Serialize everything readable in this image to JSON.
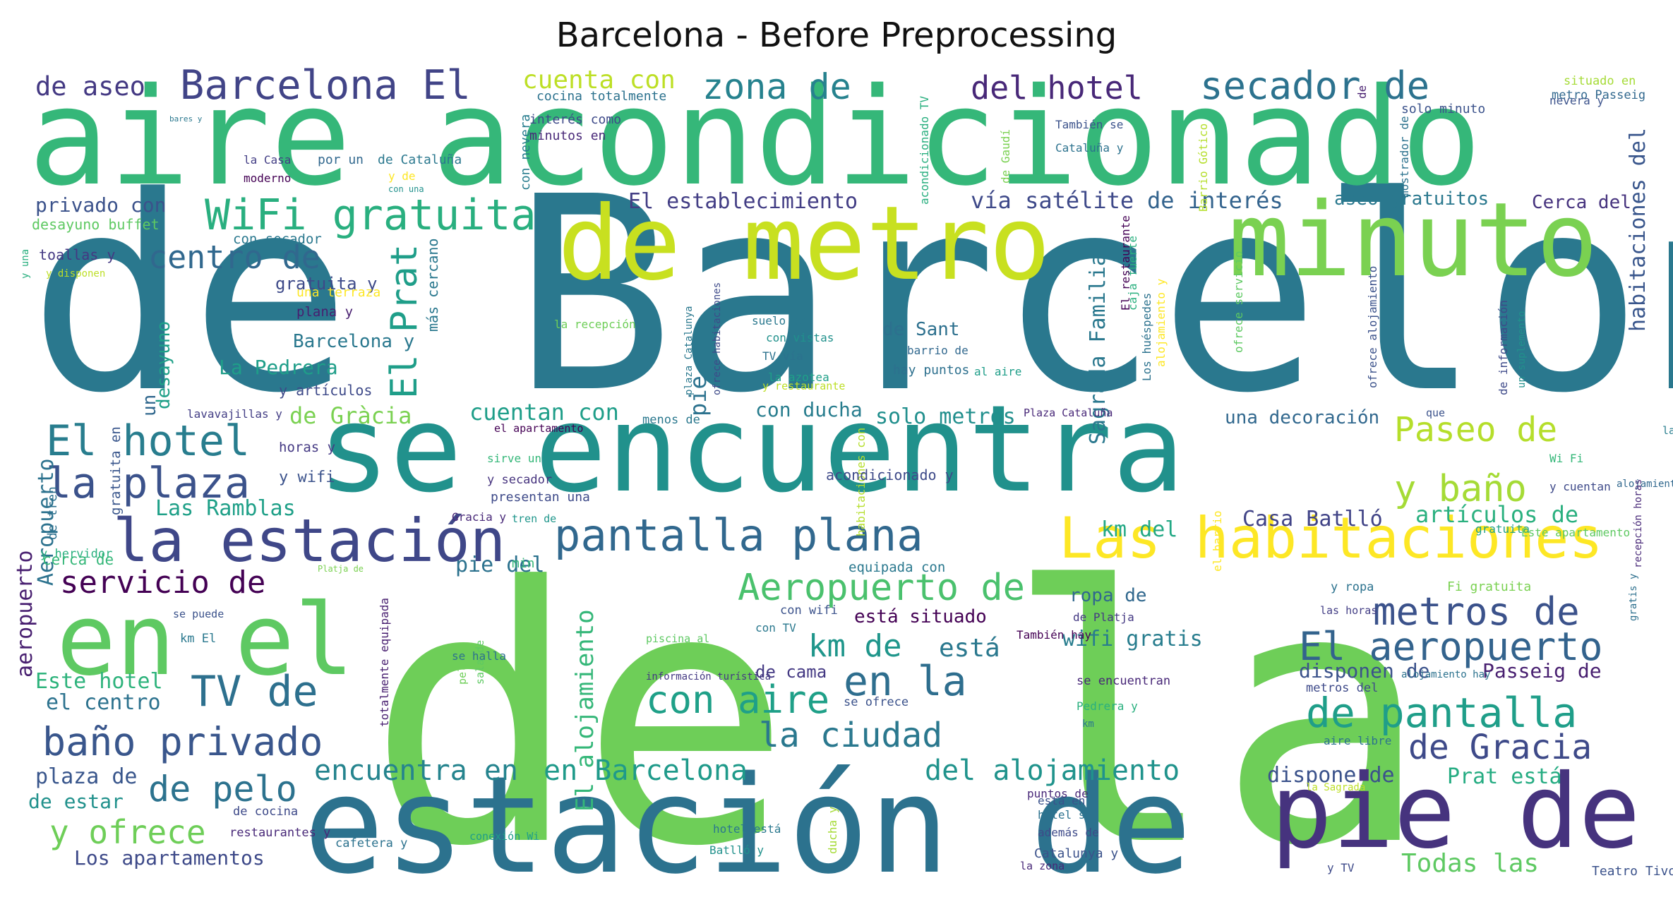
{
  "title": "Barcelona - Before Preprocessing",
  "words": [
    {
      "text": "de Barcelona",
      "color": "#2a788e"
    },
    {
      "text": "de la",
      "color": "#6ece58"
    },
    {
      "text": "aire acondicionado",
      "color": "#35b779"
    },
    {
      "text": "se encuentra",
      "color": "#21918c"
    },
    {
      "text": "estación de",
      "color": "#2c728e"
    },
    {
      "text": "de metro",
      "color": "#c8e020"
    },
    {
      "text": "minuto",
      "color": "#7ad151"
    },
    {
      "text": "pie de",
      "color": "#46337e"
    },
    {
      "text": "Las habitaciones",
      "color": "#fde725"
    },
    {
      "text": "en el",
      "color": "#5ec962"
    },
    {
      "text": "la estación",
      "color": "#3f4788"
    },
    {
      "text": "pantalla plana",
      "color": "#31688e"
    },
    {
      "text": "WiFi gratuita",
      "color": "#29af7f"
    },
    {
      "text": "Barcelona El",
      "color": "#414487"
    },
    {
      "text": "secador de",
      "color": "#2c728e"
    },
    {
      "text": "zona de",
      "color": "#26828e"
    },
    {
      "text": "del hotel",
      "color": "#482878"
    },
    {
      "text": "cuenta con",
      "color": "#bddf26"
    },
    {
      "text": "de aseo",
      "color": "#443983"
    },
    {
      "text": "El hotel",
      "color": "#287d8e"
    },
    {
      "text": "la plaza",
      "color": "#3b528b"
    },
    {
      "text": "centro de",
      "color": "#31688e"
    },
    {
      "text": "baño privado",
      "color": "#39568c"
    },
    {
      "text": "TV de",
      "color": "#2d708e"
    },
    {
      "text": "en la",
      "color": "#2e6e8e"
    },
    {
      "text": "con aire",
      "color": "#1fa088"
    },
    {
      "text": "de pantalla",
      "color": "#1f9e89"
    },
    {
      "text": "la ciudad",
      "color": "#2a788e"
    },
    {
      "text": "de Gracia",
      "color": "#3e4a89"
    },
    {
      "text": "metros de",
      "color": "#3b528b"
    },
    {
      "text": "El aeropuerto",
      "color": "#33638d"
    },
    {
      "text": "Aeropuerto de",
      "color": "#4ac16d"
    },
    {
      "text": "servicio de",
      "color": "#440154"
    },
    {
      "text": "km de",
      "color": "#1f968b"
    },
    {
      "text": "está",
      "color": "#2a788e"
    },
    {
      "text": "de pelo",
      "color": "#2c728e"
    },
    {
      "text": "y ofrece",
      "color": "#6ece58"
    },
    {
      "text": "encuentra en",
      "color": "#25848e"
    },
    {
      "text": "en Barcelona",
      "color": "#1f9a8a"
    },
    {
      "text": "del alojamiento",
      "color": "#20938c"
    },
    {
      "text": "y baño",
      "color": "#a5db36"
    },
    {
      "text": "Paseo de",
      "color": "#b5de2b"
    },
    {
      "text": "artículos de",
      "color": "#2ab07f"
    },
    {
      "text": "Casa Batlló",
      "color": "#414487"
    },
    {
      "text": "El Prat",
      "color": "#1f9e89"
    },
    {
      "text": "El establecimiento",
      "color": "#433e85"
    },
    {
      "text": "vía satélite",
      "color": "#3e4989"
    },
    {
      "text": "de interés",
      "color": "#33638d"
    },
    {
      "text": "aseo gratuitos",
      "color": "#2a788e"
    },
    {
      "text": "Cerca del",
      "color": "#46337e"
    },
    {
      "text": "privado con",
      "color": "#3b528b"
    },
    {
      "text": "Las Ramblas",
      "color": "#1fa088"
    },
    {
      "text": "Este hotel",
      "color": "#2eb37c"
    },
    {
      "text": "el centro",
      "color": "#2c728e"
    },
    {
      "text": "plaza de",
      "color": "#39568c"
    },
    {
      "text": "de estar",
      "color": "#21918c"
    },
    {
      "text": "Los apartamentos",
      "color": "#3e4a89"
    },
    {
      "text": "Todas las",
      "color": "#5ec962"
    },
    {
      "text": "Prat está",
      "color": "#25ac82"
    },
    {
      "text": "dispone de",
      "color": "#3b528b"
    },
    {
      "text": "de Gràcia",
      "color": "#7ad151"
    },
    {
      "text": "cuentan con",
      "color": "#1f9e89"
    },
    {
      "text": "solo metros",
      "color": "#218f8d"
    },
    {
      "text": "con ducha",
      "color": "#287d8e"
    },
    {
      "text": "una decoración",
      "color": "#31688e"
    },
    {
      "text": "km del",
      "color": "#22a884"
    },
    {
      "text": "La Pedrera",
      "color": "#1f9e89"
    },
    {
      "text": "Barcelona y",
      "color": "#2a788e"
    },
    {
      "text": "gratuita y",
      "color": "#3e4a89"
    },
    {
      "text": "de Sant",
      "color": "#2d708e"
    },
    {
      "text": "está situado",
      "color": "#440154"
    },
    {
      "text": "wifi gratis",
      "color": "#287d8e"
    },
    {
      "text": "ropa de",
      "color": "#31688e"
    },
    {
      "text": "de cama",
      "color": "#443983"
    },
    {
      "text": "disponen de",
      "color": "#3b528b"
    },
    {
      "text": "Passeig de",
      "color": "#481f70"
    },
    {
      "text": "pie del",
      "color": "#2c728e"
    },
    {
      "text": "habitaciones del",
      "color": "#39568c"
    },
    {
      "text": "Sagrada Familia",
      "color": "#2a788e"
    },
    {
      "text": "desayuno",
      "color": "#1fa088"
    },
    {
      "text": "El alojamiento",
      "color": "#35b779"
    },
    {
      "text": "pie",
      "color": "#2c728e"
    },
    {
      "text": "desayuno buffet",
      "color": "#5ec962"
    },
    {
      "text": "toallas y",
      "color": "#443983"
    },
    {
      "text": "y disponen",
      "color": "#bddf26"
    },
    {
      "text": "y una",
      "color": "#29af7f"
    },
    {
      "text": "con secador",
      "color": "#2a788e"
    },
    {
      "text": "una terraza",
      "color": "#fde725"
    },
    {
      "text": "más cercano",
      "color": "#2a788e"
    },
    {
      "text": "plana y",
      "color": "#481f70"
    },
    {
      "text": "y artículos",
      "color": "#3e4a89"
    },
    {
      "text": "un",
      "color": "#31688e"
    },
    {
      "text": "lavavajillas y",
      "color": "#433e85"
    },
    {
      "text": "horas y",
      "color": "#443983"
    },
    {
      "text": "y wifi",
      "color": "#3b528b"
    },
    {
      "text": "Aeropuerto",
      "color": "#2c728e"
    },
    {
      "text": "gratuita en",
      "color": "#39568c"
    },
    {
      "text": "y hervidor",
      "color": "#2ab07f"
    },
    {
      "text": "de tren",
      "color": "#2d708e"
    },
    {
      "text": "cerca de",
      "color": "#35b779"
    },
    {
      "text": "aeropuerto",
      "color": "#481f70"
    },
    {
      "text": "se puede",
      "color": "#3b528b"
    },
    {
      "text": "km El",
      "color": "#2a788e"
    },
    {
      "text": "el apartamento",
      "color": "#440154"
    },
    {
      "text": "sirve un",
      "color": "#35b779"
    },
    {
      "text": "y secador",
      "color": "#46337e"
    },
    {
      "text": "presentan una",
      "color": "#3e4a89"
    },
    {
      "text": "tren de",
      "color": "#1f968b"
    },
    {
      "text": "Gracia y",
      "color": "#482878"
    },
    {
      "text": "Platja de",
      "color": "#7ad151"
    },
    {
      "text": "totalmente equipada",
      "color": "#481f70"
    },
    {
      "text": "se halla",
      "color": "#2c728e"
    },
    {
      "text": "pelo y",
      "color": "#6ece58"
    },
    {
      "text": "sala de",
      "color": "#5ec962"
    },
    {
      "text": "cocina totalmente",
      "color": "#2c728e"
    },
    {
      "text": "interés como",
      "color": "#3e4a89"
    },
    {
      "text": "minutos en",
      "color": "#482878"
    },
    {
      "text": "por un",
      "color": "#31688e"
    },
    {
      "text": "de Cataluña",
      "color": "#2a788e"
    },
    {
      "text": "con nevera",
      "color": "#287d8e"
    },
    {
      "text": "la Casa",
      "color": "#433e85"
    },
    {
      "text": "y de",
      "color": "#fde725"
    },
    {
      "text": "moderno",
      "color": "#440154"
    },
    {
      "text": "con una",
      "color": "#21918c"
    },
    {
      "text": "bares y",
      "color": "#2a788e"
    },
    {
      "text": "acondicionado TV",
      "color": "#29af7f"
    },
    {
      "text": "de Gaudí",
      "color": "#7ad151"
    },
    {
      "text": "También se",
      "color": "#3b528b"
    },
    {
      "text": "Cataluña y",
      "color": "#2c728e"
    },
    {
      "text": "Barrio Gótico",
      "color": "#b5de2b"
    },
    {
      "text": "solo minuto",
      "color": "#3b528b"
    },
    {
      "text": "situado en",
      "color": "#a5db36"
    },
    {
      "text": "nevera y",
      "color": "#3b528b"
    },
    {
      "text": "metro Passeig",
      "color": "#31688e"
    },
    {
      "text": "mostrador de",
      "color": "#2c728e"
    },
    {
      "text": "de",
      "color": "#481f70"
    },
    {
      "text": "plaza Catalunya",
      "color": "#2a788e"
    },
    {
      "text": "ofrece habitaciones",
      "color": "#3e4a89"
    },
    {
      "text": "suelo de",
      "color": "#2a788e"
    },
    {
      "text": "con vistas",
      "color": "#21918c"
    },
    {
      "text": "TV vía",
      "color": "#2c728e"
    },
    {
      "text": "la azotea",
      "color": "#1fa088"
    },
    {
      "text": "y restaurante",
      "color": "#bddf26"
    },
    {
      "text": "barrio de",
      "color": "#31688e"
    },
    {
      "text": "hay puntos",
      "color": "#2d708e"
    },
    {
      "text": "al aire",
      "color": "#1f9e89"
    },
    {
      "text": "la recepción",
      "color": "#6ece58"
    },
    {
      "text": "caja fuerte",
      "color": "#2ab07f"
    },
    {
      "text": "alojamiento y",
      "color": "#fde725"
    },
    {
      "text": "ofrece servicio",
      "color": "#5ec962"
    },
    {
      "text": "El restaurante",
      "color": "#440154"
    },
    {
      "text": "Los huéspedes",
      "color": "#2c728e"
    },
    {
      "text": "ofrece alojamiento",
      "color": "#3b528b"
    },
    {
      "text": "de información",
      "color": "#3e4a89"
    },
    {
      "text": "un suplemento",
      "color": "#21918c"
    },
    {
      "text": "habitaciones con",
      "color": "#b5de2b"
    },
    {
      "text": "menos de",
      "color": "#2a788e"
    },
    {
      "text": "Plaza Cataluña",
      "color": "#482878"
    },
    {
      "text": "que",
      "color": "#3b528b"
    },
    {
      "text": "la playa",
      "color": "#287d8e"
    },
    {
      "text": "Wi Fi",
      "color": "#35b779"
    },
    {
      "text": "y cuentan",
      "color": "#3e4a89"
    },
    {
      "text": "alojamiento con",
      "color": "#31688e"
    },
    {
      "text": "gratuita",
      "color": "#1fa088"
    },
    {
      "text": "Este apartamento",
      "color": "#5ec962"
    },
    {
      "text": "recepción horas",
      "color": "#482878"
    },
    {
      "text": "el barrio",
      "color": "#fde725"
    },
    {
      "text": "min",
      "color": "#35b779"
    },
    {
      "text": "equipada con",
      "color": "#2a788e"
    },
    {
      "text": "acondicionado y",
      "color": "#3e4a89"
    },
    {
      "text": "y ropa",
      "color": "#2c728e"
    },
    {
      "text": "Fi gratuita",
      "color": "#7ad151"
    },
    {
      "text": "las horas",
      "color": "#433e85"
    },
    {
      "text": "gratis y",
      "color": "#2d708e"
    },
    {
      "text": "con wifi",
      "color": "#3b528b"
    },
    {
      "text": "con TV",
      "color": "#2a788e"
    },
    {
      "text": "piscina al",
      "color": "#5ec962"
    },
    {
      "text": "información turística",
      "color": "#443983"
    },
    {
      "text": "se ofrece",
      "color": "#3b528b"
    },
    {
      "text": "se encuentran",
      "color": "#482878"
    },
    {
      "text": "alojamiento hay",
      "color": "#2c728e"
    },
    {
      "text": "metros del",
      "color": "#3e4a89"
    },
    {
      "text": "Pedrera y",
      "color": "#2ab07f"
    },
    {
      "text": "km",
      "color": "#2a788e"
    },
    {
      "text": "También hay",
      "color": "#440154"
    },
    {
      "text": "aire libre",
      "color": "#2c728e"
    },
    {
      "text": "de Platja",
      "color": "#443983"
    },
    {
      "text": "la Sagrada",
      "color": "#bddf26"
    },
    {
      "text": "ducha y",
      "color": "#a5db36"
    },
    {
      "text": "está en",
      "color": "#3b528b"
    },
    {
      "text": "puntos de",
      "color": "#482878"
    },
    {
      "text": "hotel se",
      "color": "#2c728e"
    },
    {
      "text": "además de",
      "color": "#3e4a89"
    },
    {
      "text": "hotel está",
      "color": "#2a788e"
    },
    {
      "text": "Batlló y",
      "color": "#21918c"
    },
    {
      "text": "de cocina",
      "color": "#3e4a89"
    },
    {
      "text": "restaurantes y",
      "color": "#482878"
    },
    {
      "text": "conexión Wi",
      "color": "#1f9e89"
    },
    {
      "text": "cafetera y",
      "color": "#2c728e"
    },
    {
      "text": "Catalunya y",
      "color": "#3b528b"
    },
    {
      "text": "la zona",
      "color": "#482878"
    },
    {
      "text": "y TV",
      "color": "#3e4a89"
    },
    {
      "text": "Teatro Tivoli",
      "color": "#3b528b"
    }
  ]
}
